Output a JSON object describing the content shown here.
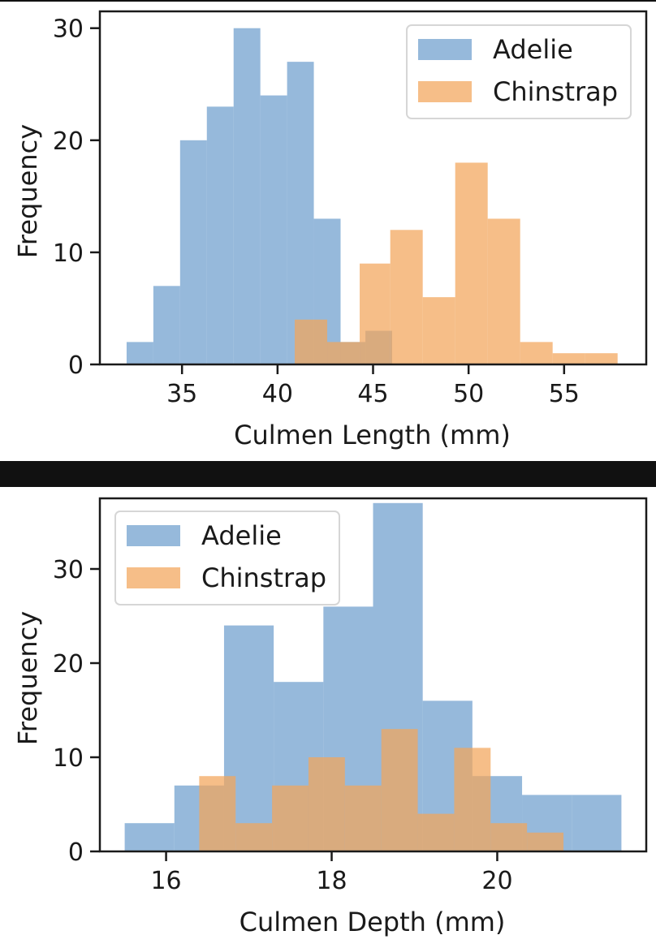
{
  "chart_data": [
    {
      "type": "bar",
      "histogram": true,
      "xlabel": "Culmen Length (mm)",
      "ylabel": "Frequency",
      "xlim": [
        30.7,
        59.3
      ],
      "ylim": [
        0,
        31.5
      ],
      "xticks": [
        35,
        40,
        45,
        50,
        55
      ],
      "yticks": [
        0,
        10,
        20,
        30
      ],
      "legend_position": "top-right",
      "grid": false,
      "series": [
        {
          "name": "Adelie",
          "color": "#6e9ecd",
          "bin_edges": [
            32.1,
            33.5,
            34.9,
            36.3,
            37.7,
            39.1,
            40.5,
            41.9,
            43.3,
            44.6,
            46.0
          ],
          "values": [
            2,
            7,
            20,
            23,
            30,
            24,
            27,
            13,
            2,
            3
          ]
        },
        {
          "name": "Chinstrap",
          "color": "#f2a55a",
          "bin_edges": [
            40.9,
            42.6,
            44.3,
            45.9,
            47.6,
            49.3,
            51.0,
            52.7,
            54.4,
            56.1,
            57.8
          ],
          "values": [
            4,
            2,
            9,
            12,
            6,
            18,
            13,
            2,
            1,
            1
          ]
        }
      ]
    },
    {
      "type": "bar",
      "histogram": true,
      "xlabel": "Culmen Depth (mm)",
      "ylabel": "Frequency",
      "xlim": [
        15.2,
        21.8
      ],
      "ylim": [
        0,
        37.5
      ],
      "xticks": [
        16,
        18,
        20
      ],
      "yticks": [
        0,
        10,
        20,
        30
      ],
      "legend_position": "top-left",
      "grid": false,
      "series": [
        {
          "name": "Adelie",
          "color": "#6e9ecd",
          "bin_edges": [
            15.5,
            16.1,
            16.7,
            17.3,
            17.9,
            18.5,
            19.1,
            19.7,
            20.3,
            20.9,
            21.5
          ],
          "values": [
            3,
            7,
            24,
            18,
            26,
            37,
            16,
            8,
            6,
            6
          ]
        },
        {
          "name": "Chinstrap",
          "color": "#f2a55a",
          "bin_edges": [
            16.4,
            16.84,
            17.28,
            17.72,
            18.16,
            18.6,
            19.04,
            19.48,
            19.92,
            20.36,
            20.8
          ],
          "values": [
            8,
            3,
            7,
            10,
            7,
            13,
            4,
            11,
            3,
            2
          ]
        }
      ]
    }
  ]
}
